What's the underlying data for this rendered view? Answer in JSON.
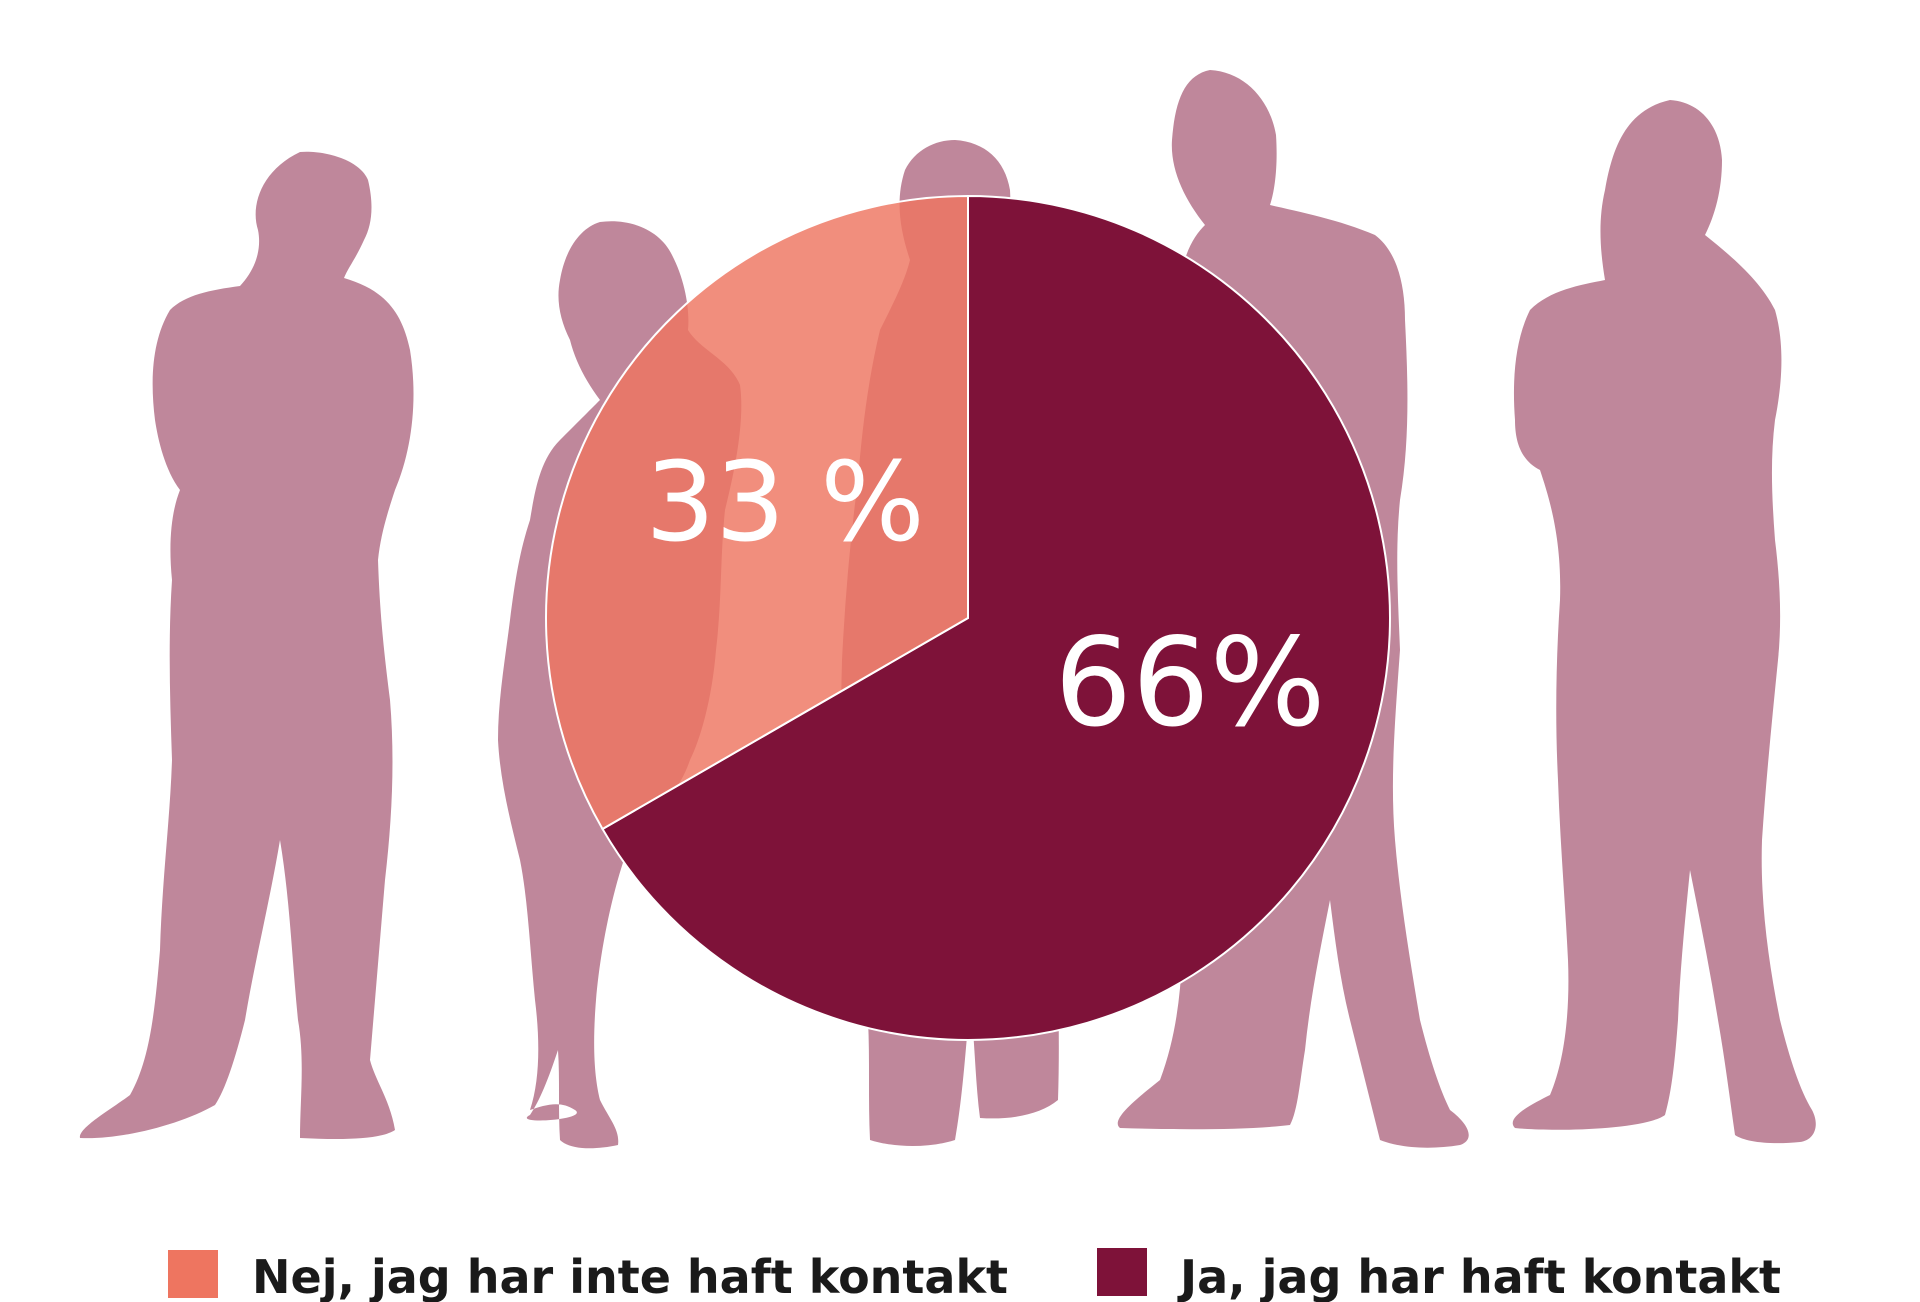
{
  "chart_data": {
    "type": "pie",
    "categories": [
      "Nej, jag har inte haft kontakt",
      "Ja, jag har haft kontakt"
    ],
    "values": [
      33,
      66
    ],
    "labels": [
      "33 %",
      "66%"
    ],
    "colors": [
      "#EE7560",
      "#7E1239"
    ],
    "legend": {
      "placement": "bottom",
      "items": [
        {
          "label": "Nej, jag har inte haft kontakt",
          "color": "#EE7560"
        },
        {
          "label": "Ja, jag har haft kontakt",
          "color": "#7E1239"
        }
      ]
    }
  },
  "decoration": {
    "background_figures": "silhouette-people",
    "figure_color": "#BF879B"
  }
}
